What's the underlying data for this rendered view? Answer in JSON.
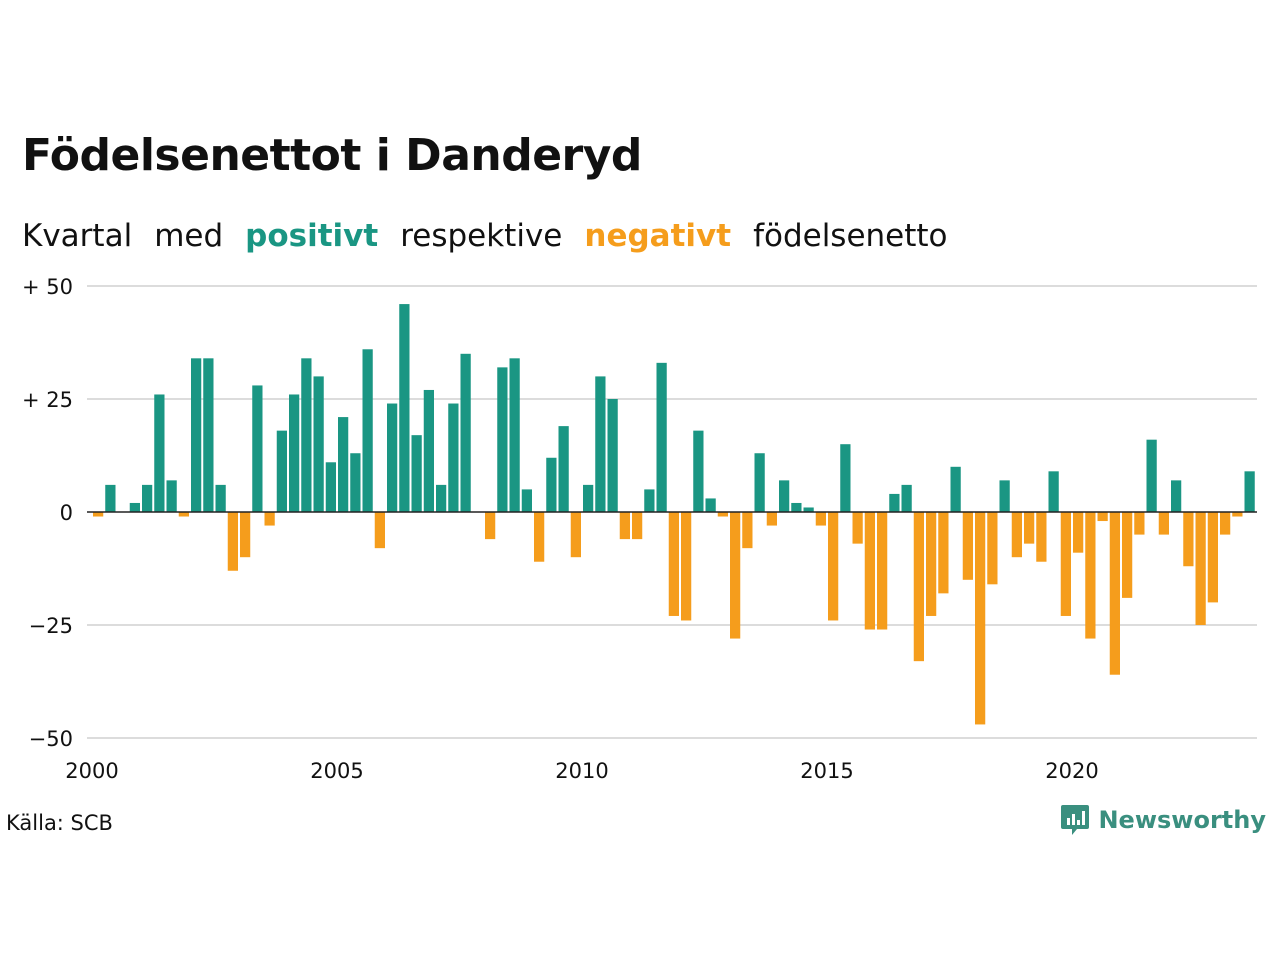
{
  "colors": {
    "positive": "#1a9683",
    "negative": "#f59d1c",
    "grid": "#dcdcdc",
    "axis": "#222222"
  },
  "chart_data": {
    "type": "bar",
    "title": "Födelsenettot i Danderyd",
    "subtitle": [
      "Kvartal",
      "med",
      "positivt",
      "respektive",
      "negativt",
      "födelsenetto"
    ],
    "xlabel": "",
    "ylabel": "",
    "x_tick_labels": [
      "2000",
      "2005",
      "2010",
      "2015",
      "2020"
    ],
    "y_ticks": [
      50,
      25,
      0,
      -25,
      -50
    ],
    "y_tick_labels": [
      "+ 50",
      "+ 25",
      "0",
      "−25",
      "−50"
    ],
    "ylim": [
      -50,
      50
    ],
    "xlim": [
      2000,
      2024
    ],
    "start_year": 2000,
    "grid": true,
    "legend": "none",
    "values": [
      -1,
      6,
      0,
      2,
      6,
      26,
      7,
      -1,
      34,
      34,
      6,
      -13,
      -10,
      28,
      -3,
      18,
      26,
      34,
      30,
      11,
      21,
      13,
      36,
      -8,
      24,
      46,
      17,
      27,
      6,
      24,
      35,
      0,
      -6,
      32,
      34,
      5,
      -11,
      12,
      19,
      -10,
      6,
      30,
      25,
      -6,
      -6,
      5,
      33,
      -23,
      -24,
      18,
      3,
      -1,
      -28,
      -8,
      13,
      -3,
      7,
      2,
      1,
      -3,
      -24,
      15,
      -7,
      -26,
      -26,
      4,
      6,
      -33,
      -23,
      -18,
      10,
      -15,
      -47,
      -16,
      7,
      -10,
      -7,
      -11,
      9,
      -23,
      -9,
      -28,
      -2,
      -36,
      -19,
      -5,
      16,
      -5,
      7,
      -12,
      -25,
      -20,
      -5,
      -1,
      9
    ]
  },
  "source": "Källa: SCB",
  "logo": {
    "text": "Newsworthy",
    "icon": "chat-bubble-chart-icon"
  }
}
